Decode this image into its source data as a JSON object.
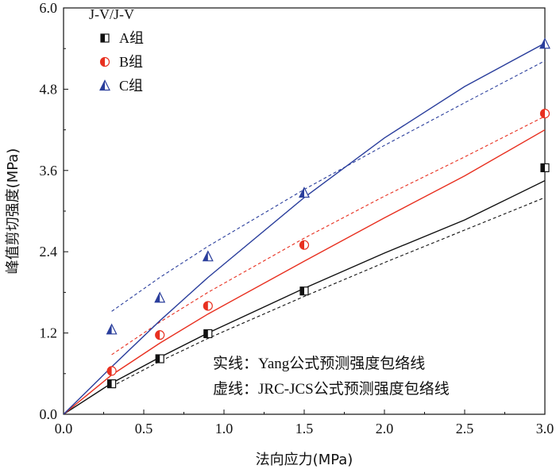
{
  "chart_data": {
    "type": "scatter",
    "title": "",
    "xlabel": "法向应力(MPa)",
    "ylabel": "峰值剪切强度(MPa)",
    "xlim": [
      0.0,
      3.0
    ],
    "ylim": [
      0.0,
      6.0
    ],
    "xticks": [
      "0.0",
      "0.5",
      "1.0",
      "1.5",
      "2.0",
      "2.5",
      "3.0"
    ],
    "yticks": [
      "0.0",
      "1.2",
      "2.4",
      "3.6",
      "4.8",
      "6.0"
    ],
    "legend_title": "J-V/J-V",
    "legend_position": "top-left",
    "grid": false,
    "series": [
      {
        "name": "A组",
        "color": "#111111",
        "marker": "half-filled-square",
        "x": [
          0.3,
          0.6,
          0.9,
          1.5,
          3.0
        ],
        "y": [
          0.45,
          0.82,
          1.19,
          1.82,
          3.64
        ],
        "fit_solid": {
          "x": [
            0,
            0.3,
            0.6,
            0.9,
            1.5,
            2.0,
            2.5,
            3.0
          ],
          "y": [
            0,
            0.46,
            0.84,
            1.2,
            1.86,
            2.38,
            2.87,
            3.45
          ]
        },
        "fit_dashed": {
          "x": [
            0.3,
            0.6,
            0.9,
            1.5,
            2.0,
            2.5,
            3.0
          ],
          "y": [
            0.41,
            0.78,
            1.12,
            1.74,
            2.24,
            2.72,
            3.2
          ]
        }
      },
      {
        "name": "B组",
        "color": "#e83020",
        "marker": "half-filled-circle",
        "x": [
          0.3,
          0.6,
          0.9,
          1.5,
          3.0
        ],
        "y": [
          0.64,
          1.17,
          1.6,
          2.5,
          4.44
        ],
        "fit_solid": {
          "x": [
            0,
            0.3,
            0.6,
            0.9,
            1.5,
            2.0,
            2.5,
            3.0
          ],
          "y": [
            0,
            0.58,
            1.05,
            1.48,
            2.26,
            2.9,
            3.52,
            4.2
          ]
        },
        "fit_dashed": {
          "x": [
            0.3,
            0.6,
            0.9,
            1.5,
            2.0,
            2.5,
            3.0
          ],
          "y": [
            0.88,
            1.36,
            1.8,
            2.6,
            3.22,
            3.8,
            4.4
          ]
        }
      },
      {
        "name": "C组",
        "color": "#2a3e9c",
        "marker": "half-filled-triangle",
        "x": [
          0.3,
          0.6,
          0.9,
          1.5,
          3.0
        ],
        "y": [
          1.25,
          1.72,
          2.33,
          3.27,
          5.47
        ],
        "fit_solid": {
          "x": [
            0,
            0.3,
            0.6,
            0.9,
            1.5,
            2.0,
            2.5,
            3.0
          ],
          "y": [
            0,
            0.7,
            1.38,
            2.02,
            3.2,
            4.08,
            4.84,
            5.48
          ]
        },
        "fit_dashed": {
          "x": [
            0.3,
            0.6,
            0.9,
            1.5,
            2.0,
            2.5,
            3.0
          ],
          "y": [
            1.52,
            2.02,
            2.48,
            3.32,
            3.97,
            4.6,
            5.22
          ]
        }
      }
    ],
    "annotations": [
      "实线：Yang公式预测强度包络线",
      "虚线：JRC-JCS公式预测强度包络线"
    ]
  }
}
